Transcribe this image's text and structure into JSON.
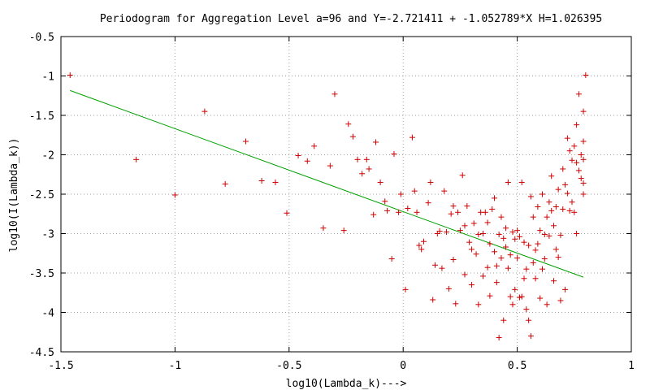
{
  "chart_data": {
    "type": "scatter",
    "title": "Periodogram for Aggregation Level a=96 and Y=-2.721411 + -1.052789*X H=1.026395",
    "xlabel": "log10(Lambda_k)--->",
    "ylabel": "log10(I(Lambda_k))",
    "xlim": [
      -1.5,
      1
    ],
    "ylim": [
      -4.5,
      -0.5
    ],
    "x_ticks": [
      -1.5,
      -1,
      -0.5,
      0,
      0.5,
      1
    ],
    "x_tick_labels": [
      "-1.5",
      "-1",
      "-0.5",
      "0",
      "0.5",
      "1"
    ],
    "y_ticks": [
      -4.5,
      -4,
      -3.5,
      -3,
      -2.5,
      -2,
      -1.5,
      -1,
      -0.5
    ],
    "y_tick_labels": [
      "-4.5",
      "-4",
      "-3.5",
      "-3",
      "-2.5",
      "-2",
      "-1.5",
      "-1",
      "-0.5"
    ],
    "grid": true,
    "colors": {
      "points": "#d00000",
      "fit": "#00a000",
      "grid": "#a0a0a0"
    },
    "fit_line": {
      "intercept": -2.721411,
      "slope": -1.052789,
      "x_range": [
        -1.46,
        0.79
      ]
    },
    "series": [
      {
        "marker": "plus",
        "points": [
          [
            -1.46,
            -0.99
          ],
          [
            -1.17,
            -2.06
          ],
          [
            -1.0,
            -2.51
          ],
          [
            -0.87,
            -1.45
          ],
          [
            -0.78,
            -2.37
          ],
          [
            -0.69,
            -1.83
          ],
          [
            -0.62,
            -2.33
          ],
          [
            -0.56,
            -2.35
          ],
          [
            -0.51,
            -2.74
          ],
          [
            -0.46,
            -2.01
          ],
          [
            -0.42,
            -2.08
          ],
          [
            -0.39,
            -1.89
          ],
          [
            -0.35,
            -2.93
          ],
          [
            -0.32,
            -2.14
          ],
          [
            -0.3,
            -1.23
          ],
          [
            -0.26,
            -2.96
          ],
          [
            -0.24,
            -1.61
          ],
          [
            -0.22,
            -1.77
          ],
          [
            -0.2,
            -2.06
          ],
          [
            -0.18,
            -2.24
          ],
          [
            -0.16,
            -2.06
          ],
          [
            -0.15,
            -2.18
          ],
          [
            -0.13,
            -2.76
          ],
          [
            -0.12,
            -1.84
          ],
          [
            -0.1,
            -2.35
          ],
          [
            -0.08,
            -2.59
          ],
          [
            -0.07,
            -2.71
          ],
          [
            -0.05,
            -3.32
          ],
          [
            -0.04,
            -1.99
          ],
          [
            -0.02,
            -2.73
          ],
          [
            -0.01,
            -2.5
          ],
          [
            0.01,
            -3.71
          ],
          [
            0.02,
            -2.68
          ],
          [
            0.04,
            -1.78
          ],
          [
            0.05,
            -2.46
          ],
          [
            0.06,
            -2.73
          ],
          [
            0.07,
            -3.15
          ],
          [
            0.08,
            -3.2
          ],
          [
            0.09,
            -3.1
          ],
          [
            0.11,
            -2.61
          ],
          [
            0.12,
            -2.35
          ],
          [
            0.13,
            -3.84
          ],
          [
            0.14,
            -3.4
          ],
          [
            0.15,
            -3.0
          ],
          [
            0.16,
            -2.97
          ],
          [
            0.17,
            -3.44
          ],
          [
            0.18,
            -2.46
          ],
          [
            0.19,
            -2.98
          ],
          [
            0.2,
            -3.7
          ],
          [
            0.21,
            -2.75
          ],
          [
            0.22,
            -2.65
          ],
          [
            0.22,
            -3.33
          ],
          [
            0.23,
            -3.89
          ],
          [
            0.24,
            -2.73
          ],
          [
            0.25,
            -2.96
          ],
          [
            0.26,
            -2.26
          ],
          [
            0.27,
            -3.52
          ],
          [
            0.27,
            -2.9
          ],
          [
            0.28,
            -2.65
          ],
          [
            0.29,
            -3.11
          ],
          [
            0.3,
            -3.65
          ],
          [
            0.3,
            -3.2
          ],
          [
            0.31,
            -2.87
          ],
          [
            0.32,
            -3.26
          ],
          [
            0.33,
            -3.9
          ],
          [
            0.33,
            -3.01
          ],
          [
            0.34,
            -2.73
          ],
          [
            0.35,
            -3.0
          ],
          [
            0.35,
            -3.54
          ],
          [
            0.36,
            -2.73
          ],
          [
            0.37,
            -3.43
          ],
          [
            0.37,
            -2.86
          ],
          [
            0.38,
            -3.79
          ],
          [
            0.38,
            -3.13
          ],
          [
            0.39,
            -2.69
          ],
          [
            0.4,
            -2.55
          ],
          [
            0.4,
            -3.23
          ],
          [
            0.41,
            -3.62
          ],
          [
            0.41,
            -3.41
          ],
          [
            0.42,
            -4.32
          ],
          [
            0.42,
            -3.01
          ],
          [
            0.43,
            -2.79
          ],
          [
            0.43,
            -3.31
          ],
          [
            0.44,
            -4.1
          ],
          [
            0.44,
            -3.06
          ],
          [
            0.45,
            -2.93
          ],
          [
            0.45,
            -3.17
          ],
          [
            0.46,
            -2.35
          ],
          [
            0.46,
            -3.44
          ],
          [
            0.47,
            -3.8
          ],
          [
            0.47,
            -3.27
          ],
          [
            0.48,
            -2.98
          ],
          [
            0.48,
            -3.9
          ],
          [
            0.49,
            -3.07
          ],
          [
            0.49,
            -3.71
          ],
          [
            0.5,
            -2.96
          ],
          [
            0.5,
            -3.31
          ],
          [
            0.51,
            -3.81
          ],
          [
            0.51,
            -3.04
          ],
          [
            0.52,
            -2.35
          ],
          [
            0.52,
            -3.8
          ],
          [
            0.53,
            -3.57
          ],
          [
            0.53,
            -3.11
          ],
          [
            0.54,
            -3.45
          ],
          [
            0.54,
            -3.96
          ],
          [
            0.55,
            -3.15
          ],
          [
            0.55,
            -4.1
          ],
          [
            0.56,
            -2.53
          ],
          [
            0.56,
            -4.3
          ],
          [
            0.57,
            -3.37
          ],
          [
            0.57,
            -2.79
          ],
          [
            0.58,
            -3.21
          ],
          [
            0.58,
            -3.57
          ],
          [
            0.59,
            -2.66
          ],
          [
            0.59,
            -3.13
          ],
          [
            0.6,
            -2.96
          ],
          [
            0.6,
            -3.82
          ],
          [
            0.61,
            -2.5
          ],
          [
            0.61,
            -3.45
          ],
          [
            0.62,
            -3.01
          ],
          [
            0.62,
            -3.32
          ],
          [
            0.63,
            -3.9
          ],
          [
            0.63,
            -2.79
          ],
          [
            0.64,
            -2.6
          ],
          [
            0.64,
            -3.03
          ],
          [
            0.65,
            -2.27
          ],
          [
            0.65,
            -2.71
          ],
          [
            0.66,
            -2.9
          ],
          [
            0.66,
            -3.6
          ],
          [
            0.67,
            -2.66
          ],
          [
            0.67,
            -3.2
          ],
          [
            0.68,
            -3.3
          ],
          [
            0.68,
            -2.44
          ],
          [
            0.69,
            -3.85
          ],
          [
            0.69,
            -3.02
          ],
          [
            0.7,
            -2.69
          ],
          [
            0.7,
            -2.18
          ],
          [
            0.71,
            -2.38
          ],
          [
            0.71,
            -3.71
          ],
          [
            0.72,
            -2.49
          ],
          [
            0.72,
            -1.79
          ],
          [
            0.73,
            -1.95
          ],
          [
            0.73,
            -2.71
          ],
          [
            0.74,
            -2.07
          ],
          [
            0.74,
            -2.6
          ],
          [
            0.75,
            -1.89
          ],
          [
            0.75,
            -2.73
          ],
          [
            0.76,
            -1.62
          ],
          [
            0.76,
            -2.1
          ],
          [
            0.76,
            -3.0
          ],
          [
            0.77,
            -1.23
          ],
          [
            0.77,
            -2.2
          ],
          [
            0.78,
            -2.3
          ],
          [
            0.78,
            -2.0
          ],
          [
            0.79,
            -1.45
          ],
          [
            0.79,
            -2.5
          ],
          [
            0.79,
            -2.06
          ],
          [
            0.79,
            -1.83
          ],
          [
            0.79,
            -2.36
          ],
          [
            0.8,
            -0.99
          ]
        ]
      }
    ]
  }
}
